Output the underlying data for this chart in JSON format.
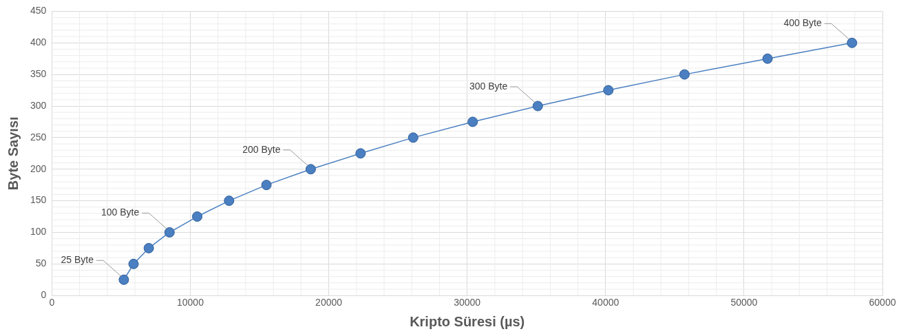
{
  "chart_data": {
    "type": "line",
    "xlabel": "Kripto Süresi (µs)",
    "ylabel": "Byte Sayısı",
    "x": [
      5200,
      5900,
      7000,
      8500,
      10500,
      12800,
      15500,
      18700,
      22300,
      26100,
      30400,
      35100,
      40200,
      45700,
      51700,
      57800
    ],
    "series": [
      {
        "color": "#4a7fc1",
        "values": [
          25,
          50,
          75,
          100,
          125,
          150,
          175,
          200,
          225,
          250,
          275,
          300,
          325,
          350,
          375,
          400
        ]
      }
    ],
    "xlim": [
      0,
      60000
    ],
    "xticks": [
      0,
      10000,
      20000,
      30000,
      40000,
      50000,
      60000
    ],
    "ylim": [
      0,
      450
    ],
    "yticks": [
      0,
      50,
      100,
      150,
      200,
      250,
      300,
      350,
      400,
      450
    ],
    "grid": true,
    "legend": false,
    "marker": "circle",
    "line_style": "solid",
    "annotations": [
      {
        "text": "25 Byte",
        "x": 5200,
        "y": 25
      },
      {
        "text": "100 Byte",
        "x": 8500,
        "y": 100
      },
      {
        "text": "200 Byte",
        "x": 18700,
        "y": 200
      },
      {
        "text": "300 Byte",
        "x": 35100,
        "y": 300
      },
      {
        "text": "400 Byte",
        "x": 57800,
        "y": 400
      }
    ]
  }
}
